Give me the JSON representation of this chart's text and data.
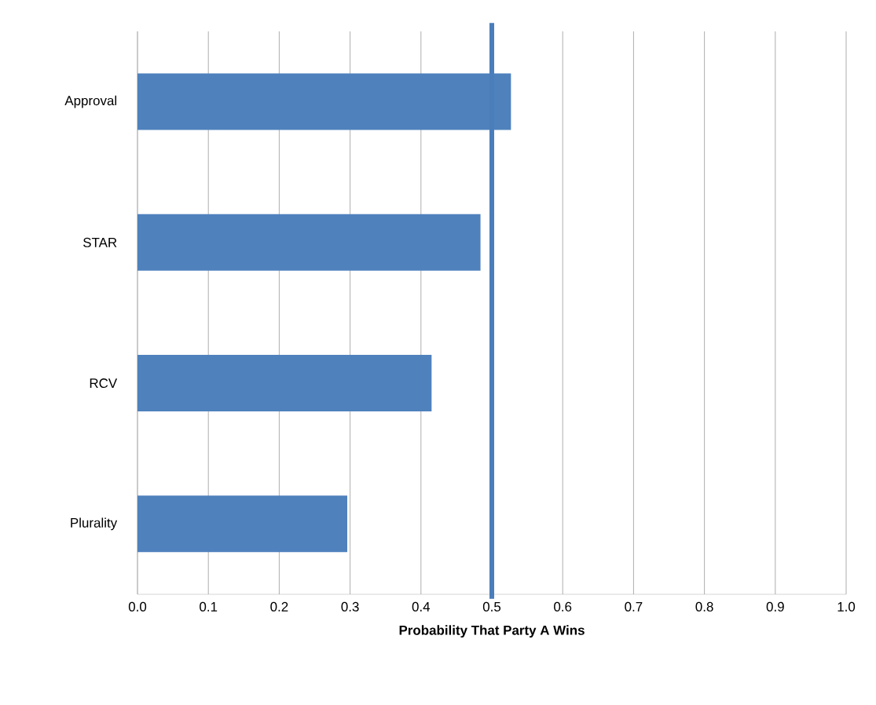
{
  "chart_data": {
    "type": "bar",
    "orientation": "horizontal",
    "xlabel": "Probability That Party A Wins",
    "categories": [
      "Approval",
      "STAR",
      "RCV",
      "Plurality"
    ],
    "values": [
      0.527,
      0.484,
      0.415,
      0.296
    ],
    "color": "#4f81bd",
    "xlim": [
      0,
      1
    ],
    "xticks": [
      {
        "value": 0,
        "label": "0.0"
      },
      {
        "value": 0.1,
        "label": "0.1"
      },
      {
        "value": 0.2,
        "label": "0.2"
      },
      {
        "value": 0.3,
        "label": "0.3"
      },
      {
        "value": 0.4,
        "label": "0.4"
      },
      {
        "value": 0.5,
        "label": "0.5"
      },
      {
        "value": 0.6,
        "label": "0.6"
      },
      {
        "value": 0.7,
        "label": "0.7"
      },
      {
        "value": 0.8,
        "label": "0.8"
      },
      {
        "value": 0.9,
        "label": "0.9"
      },
      {
        "value": 1,
        "label": "1.0"
      }
    ],
    "ref_lines": [
      {
        "axis": "x",
        "value": 0.5,
        "color": "#4a7ebb"
      }
    ],
    "grid": "x"
  }
}
